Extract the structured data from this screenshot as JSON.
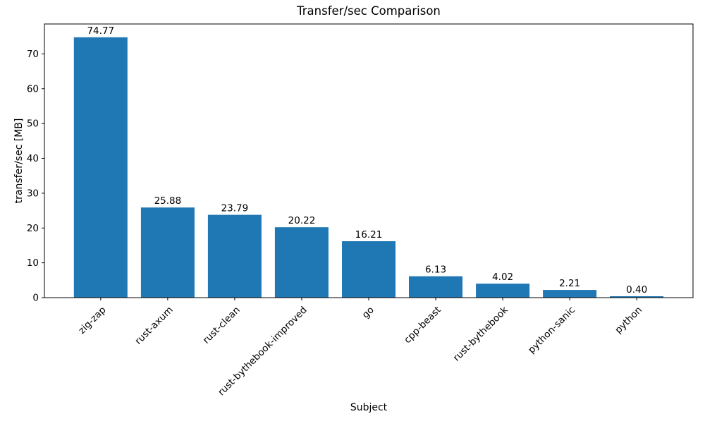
{
  "chart_data": {
    "type": "bar",
    "title": "Transfer/sec Comparison",
    "xlabel": "Subject",
    "ylabel": "transfer/sec [MB]",
    "categories": [
      "zig-zap",
      "rust-axum",
      "rust-clean",
      "rust-bythebook-improved",
      "go",
      "cpp-beast",
      "rust-bythebook",
      "python-sanic",
      "python"
    ],
    "values": [
      74.77,
      25.88,
      23.79,
      20.22,
      16.21,
      6.13,
      4.02,
      2.21,
      0.4
    ],
    "value_labels": [
      "74.77",
      "25.88",
      "23.79",
      "20.22",
      "16.21",
      "6.13",
      "4.02",
      "2.21",
      "0.40"
    ],
    "yticks": [
      0,
      10,
      20,
      30,
      40,
      50,
      60,
      70
    ],
    "ytick_labels": [
      "0",
      "10",
      "20",
      "30",
      "40",
      "50",
      "60",
      "70"
    ],
    "ylim": [
      0,
      78.6
    ],
    "bar_color": "#1f77b4",
    "grid": false,
    "legend_position": "none",
    "x_tick_rotation_deg": 45
  }
}
